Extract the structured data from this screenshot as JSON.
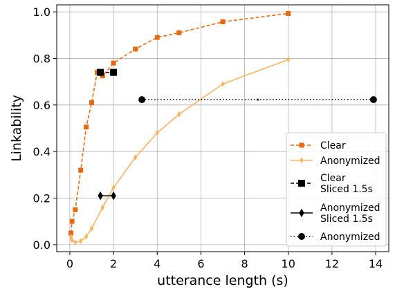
{
  "chart_data": {
    "type": "line",
    "xlabel": "utterance length (s)",
    "ylabel": "Linkability",
    "xlim": [
      -0.6,
      14.6
    ],
    "ylim": [
      -0.03,
      1.03
    ],
    "xticks": [
      0,
      2,
      4,
      6,
      8,
      10,
      12,
      14
    ],
    "yticks": [
      0.0,
      0.2,
      0.4,
      0.6,
      0.8,
      1.0
    ],
    "xtick_labels": [
      "0",
      "2",
      "4",
      "6",
      "8",
      "10",
      "12",
      "14"
    ],
    "ytick_labels": [
      "0.0",
      "0.2",
      "0.4",
      "0.6",
      "0.8",
      "1.0"
    ],
    "grid": true,
    "legend_position": "lower-right",
    "series": [
      {
        "name": "Clear",
        "color": "#e8690f",
        "line": "dashed",
        "marker": "square",
        "x": [
          0.05,
          0.1,
          0.25,
          0.5,
          0.75,
          1.0,
          1.25,
          1.5,
          2.0,
          3.0,
          4.0,
          5.0,
          7.0,
          10.0
        ],
        "y": [
          0.05,
          0.1,
          0.15,
          0.32,
          0.505,
          0.61,
          0.74,
          0.725,
          0.78,
          0.84,
          0.89,
          0.91,
          0.957,
          0.993
        ]
      },
      {
        "name": "Anonymized",
        "color": "#fdb462",
        "line": "solid",
        "marker": "diamond",
        "x": [
          0.05,
          0.1,
          0.25,
          0.5,
          0.75,
          1.0,
          1.5,
          2.0,
          3.0,
          4.0,
          5.0,
          7.0,
          10.0
        ],
        "y": [
          0.035,
          0.02,
          0.01,
          0.015,
          0.035,
          0.07,
          0.16,
          0.245,
          0.375,
          0.48,
          0.56,
          0.69,
          0.795
        ]
      },
      {
        "name": "Clear\nSliced 1.5s",
        "color": "#000000",
        "line": "dashed",
        "marker": "square",
        "x": [
          1.4,
          2.0
        ],
        "y": [
          0.74,
          0.74
        ]
      },
      {
        "name": "Anonymized\nSliced 1.5s",
        "color": "#000000",
        "line": "solid",
        "marker": "diamond",
        "x": [
          1.4,
          2.0
        ],
        "y": [
          0.21,
          0.21
        ]
      },
      {
        "name": "Anonymized",
        "color": "#000000",
        "line": "dotted",
        "marker": "circle",
        "x": [
          3.3,
          13.9
        ],
        "y": [
          0.623,
          0.623
        ]
      }
    ]
  }
}
